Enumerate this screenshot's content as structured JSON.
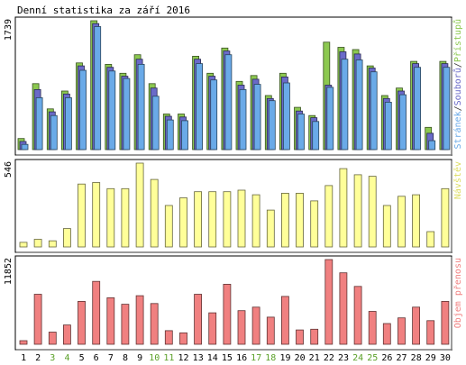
{
  "chart_data": {
    "type": "bar",
    "title": "Denní statistika za září 2016",
    "x": [
      1,
      2,
      3,
      4,
      5,
      6,
      7,
      8,
      9,
      10,
      11,
      12,
      13,
      14,
      15,
      16,
      17,
      18,
      19,
      20,
      21,
      22,
      23,
      24,
      25,
      26,
      27,
      28,
      29,
      30
    ],
    "weekend_days": [
      3,
      4,
      10,
      11,
      17,
      18,
      24,
      25
    ],
    "panels": [
      {
        "name": "hits-panel",
        "max_label": "1739",
        "ylim": [
          0,
          1739
        ],
        "legend": [
          "Stránek",
          "/",
          "Souborů",
          "/",
          "Přístupů"
        ],
        "legend_colors": [
          "#6aaae8",
          "#333333",
          "#6a6ac8",
          "#333333",
          "#8cc850"
        ],
        "series": [
          {
            "name": "Přístupů",
            "color": "#8cc850",
            "values": [
              150,
              890,
              550,
              790,
              1170,
              1739,
              1150,
              1030,
              1280,
              890,
              480,
              480,
              1260,
              1030,
              1370,
              920,
              1000,
              730,
              1030,
              570,
              460,
              1450,
              1380,
              1350,
              1130,
              730,
              830,
              1190,
              300,
              1190
            ]
          },
          {
            "name": "Souborů",
            "color": "#6a6ac8",
            "values": [
              110,
              810,
              510,
              750,
              1130,
              1700,
              1110,
              990,
              1220,
              830,
              450,
              440,
              1220,
              990,
              1330,
              870,
              950,
              690,
              980,
              520,
              430,
              870,
              1320,
              1290,
              1100,
              690,
              790,
              1160,
              220,
              1160
            ]
          },
          {
            "name": "Stránek",
            "color": "#6aaae8",
            "values": [
              70,
              700,
              460,
              700,
              1070,
              1660,
              1060,
              960,
              1150,
              720,
              400,
              390,
              1160,
              940,
              1280,
              810,
              880,
              660,
              900,
              480,
              380,
              840,
              1220,
              1210,
              1050,
              640,
              740,
              1110,
              120,
              1110
            ]
          }
        ]
      },
      {
        "name": "visits-panel",
        "max_label": "546",
        "ylim": [
          0,
          546
        ],
        "legend": [
          "Návštěv"
        ],
        "legend_colors": [
          "#dcdc60"
        ],
        "series": [
          {
            "name": "Návštěv",
            "color": "#ffff99",
            "values": [
              30,
              50,
              40,
              120,
              410,
              420,
              380,
              380,
              546,
              440,
              270,
              320,
              360,
              360,
              360,
              370,
              340,
              240,
              350,
              350,
              300,
              400,
              510,
              470,
              460,
              270,
              330,
              340,
              100,
              380
            ]
          }
        ]
      },
      {
        "name": "traffic-panel",
        "max_label": "11852",
        "ylim": [
          0,
          11852
        ],
        "legend": [
          "Objem přenosu"
        ],
        "legend_colors": [
          "#f08080"
        ],
        "series": [
          {
            "name": "Objem přenosu",
            "color": "#f08080",
            "values": [
              500,
              7000,
              1700,
              2700,
              6000,
              8800,
              6500,
              5600,
              6800,
              5700,
              1900,
              1600,
              7000,
              4400,
              8400,
              4700,
              5200,
              3800,
              6700,
              2000,
              2100,
              11852,
              10000,
              8100,
              4600,
              2900,
              3700,
              5200,
              3300,
              6000
            ]
          }
        ]
      }
    ]
  }
}
